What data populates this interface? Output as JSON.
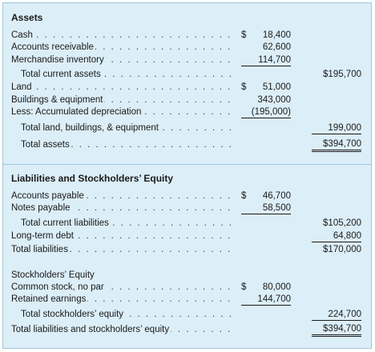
{
  "assets": {
    "heading": "Assets",
    "rows": [
      {
        "label": "Cash",
        "indent": 0,
        "col1": "18,400",
        "col1_dollar": "$",
        "col1_line": "",
        "col2": "",
        "col2_dollar": "",
        "col2_line": "",
        "leader": true
      },
      {
        "label": "Accounts receivable",
        "indent": 0,
        "col1": "62,600",
        "col1_dollar": "",
        "col1_line": "",
        "col2": "",
        "col2_dollar": "",
        "col2_line": "",
        "leader": true
      },
      {
        "label": "Merchandise inventory",
        "indent": 0,
        "col1": "114,700",
        "col1_dollar": "",
        "col1_line": "single",
        "col2": "",
        "col2_dollar": "",
        "col2_line": "",
        "leader": true
      },
      {
        "label": "Total current assets",
        "indent": 1,
        "col1": "",
        "col1_dollar": "",
        "col1_line": "",
        "col2": "$195,700",
        "col2_dollar": "",
        "col2_line": "",
        "leader": true
      },
      {
        "label": "Land",
        "indent": 0,
        "col1": "51,000",
        "col1_dollar": "$",
        "col1_line": "",
        "col2": "",
        "col2_dollar": "",
        "col2_line": "",
        "leader": true
      },
      {
        "label": "Buildings & equipment",
        "indent": 0,
        "col1": "343,000",
        "col1_dollar": "",
        "col1_line": "",
        "col2": "",
        "col2_dollar": "",
        "col2_line": "",
        "leader": true
      },
      {
        "label": "Less: Accumulated depreciation",
        "indent": 0,
        "col1": "(195,000)",
        "col1_dollar": "",
        "col1_line": "single",
        "col2": "",
        "col2_dollar": "",
        "col2_line": "",
        "leader": true
      },
      {
        "label": "Total land, buildings, & equipment",
        "indent": 1,
        "col1": "",
        "col1_dollar": "",
        "col1_line": "",
        "col2": "199,000",
        "col2_dollar": "",
        "col2_line": "single",
        "leader": true
      },
      {
        "label": "Total assets",
        "indent": 1,
        "col1": "",
        "col1_dollar": "",
        "col1_line": "",
        "col2": "$394,700",
        "col2_dollar": "",
        "col2_line": "double",
        "leader": true
      }
    ]
  },
  "liabilities": {
    "heading": "Liabilities and Stockholders’ Equity",
    "rows": [
      {
        "label": "Accounts payable",
        "indent": 0,
        "col1": "46,700",
        "col1_dollar": "$",
        "col1_line": "",
        "col2": "",
        "col2_dollar": "",
        "col2_line": "",
        "leader": true
      },
      {
        "label": "Notes payable",
        "indent": 0,
        "col1": "58,500",
        "col1_dollar": "",
        "col1_line": "single",
        "col2": "",
        "col2_dollar": "",
        "col2_line": "",
        "leader": true
      },
      {
        "label": "Total current liabilities",
        "indent": 1,
        "col1": "",
        "col1_dollar": "",
        "col1_line": "",
        "col2": "$105,200",
        "col2_dollar": "",
        "col2_line": "",
        "leader": true
      },
      {
        "label": "Long-term debt",
        "indent": 0,
        "col1": "",
        "col1_dollar": "",
        "col1_line": "",
        "col2": "64,800",
        "col2_dollar": "",
        "col2_line": "single",
        "leader": true
      },
      {
        "label": "Total liabilities",
        "indent": 0,
        "col1": "",
        "col1_dollar": "",
        "col1_line": "",
        "col2": "$170,000",
        "col2_dollar": "",
        "col2_line": "",
        "leader": true
      },
      {
        "label": "Stockholders’ Equity",
        "indent": 0,
        "col1": "",
        "col1_dollar": "",
        "col1_line": "",
        "col2": "",
        "col2_dollar": "",
        "col2_line": "",
        "leader": false
      },
      {
        "label": "Common stock, no par",
        "indent": 0,
        "col1": "80,000",
        "col1_dollar": "$",
        "col1_line": "",
        "col2": "",
        "col2_dollar": "",
        "col2_line": "",
        "leader": true
      },
      {
        "label": "Retained earnings",
        "indent": 0,
        "col1": "144,700",
        "col1_dollar": "",
        "col1_line": "single",
        "col2": "",
        "col2_dollar": "",
        "col2_line": "",
        "leader": true
      },
      {
        "label": "Total stockholders’ equity",
        "indent": 1,
        "col1": "",
        "col1_dollar": "",
        "col1_line": "",
        "col2": "224,700",
        "col2_dollar": "",
        "col2_line": "single",
        "leader": true
      },
      {
        "label": "Total liabilities and stockholders’ equity",
        "indent": 0,
        "col1": "",
        "col1_dollar": "",
        "col1_line": "",
        "col2": "$394,700",
        "col2_dollar": "",
        "col2_line": "double",
        "leader": true
      }
    ]
  },
  "colors": {
    "panel_bg": "#dceef8",
    "panel_border": "#9fc6dc",
    "text": "#1a1a1a"
  }
}
